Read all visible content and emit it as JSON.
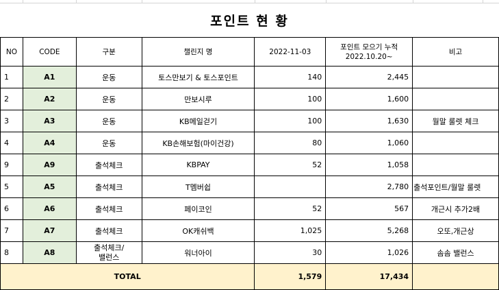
{
  "title": "포인트 현 황",
  "headers": {
    "no": "NO",
    "code": "CODE",
    "category": "구분",
    "challenge": "챌린지 명",
    "date": "2022-11-03",
    "cumulative_line1": "포인트 모으기 누적",
    "cumulative_line2": "2022.10.20~",
    "note": "비고"
  },
  "rows": [
    {
      "no": "1",
      "code": "A1",
      "category": "운동",
      "challenge": "토스만보기 & 토스포인트",
      "date_points": "140",
      "cumulative": "2,445",
      "note": ""
    },
    {
      "no": "2",
      "code": "A2",
      "category": "운동",
      "challenge": "만보시루",
      "date_points": "100",
      "cumulative": "1,600",
      "note": ""
    },
    {
      "no": "3",
      "code": "A3",
      "category": "운동",
      "challenge": "KB메일걷기",
      "date_points": "100",
      "cumulative": "1,630",
      "note": "월말 룰렛 체크"
    },
    {
      "no": "4",
      "code": "A4",
      "category": "운동",
      "challenge": "KB손해보험(마이건강)",
      "date_points": "80",
      "cumulative": "1,060",
      "note": ""
    },
    {
      "no": "9",
      "code": "A9",
      "category": "출석체크",
      "challenge": "KBPAY",
      "date_points": "52",
      "cumulative": "1,058",
      "note": ""
    },
    {
      "no": "5",
      "code": "A5",
      "category": "출석체크",
      "challenge": "T멤버쉽",
      "date_points": "",
      "cumulative": "2,780",
      "note": "출석포인트/월말 룰렛"
    },
    {
      "no": "6",
      "code": "A6",
      "category": "출석체크",
      "challenge": "페이코인",
      "date_points": "52",
      "cumulative": "567",
      "note": "개근시 추가2배"
    },
    {
      "no": "7",
      "code": "A7",
      "category": "출석체크",
      "challenge": "OK캐쉬백",
      "date_points": "1,025",
      "cumulative": "5,268",
      "note": "오또,개근상"
    },
    {
      "no": "8",
      "code": "A8",
      "category": "출석체크/\n밸런스",
      "challenge": "워너아이",
      "date_points": "30",
      "cumulative": "1,026",
      "note": "솜솜 밸런스"
    }
  ],
  "total": {
    "label": "TOTAL",
    "date_points": "1,579",
    "cumulative": "17,434"
  }
}
